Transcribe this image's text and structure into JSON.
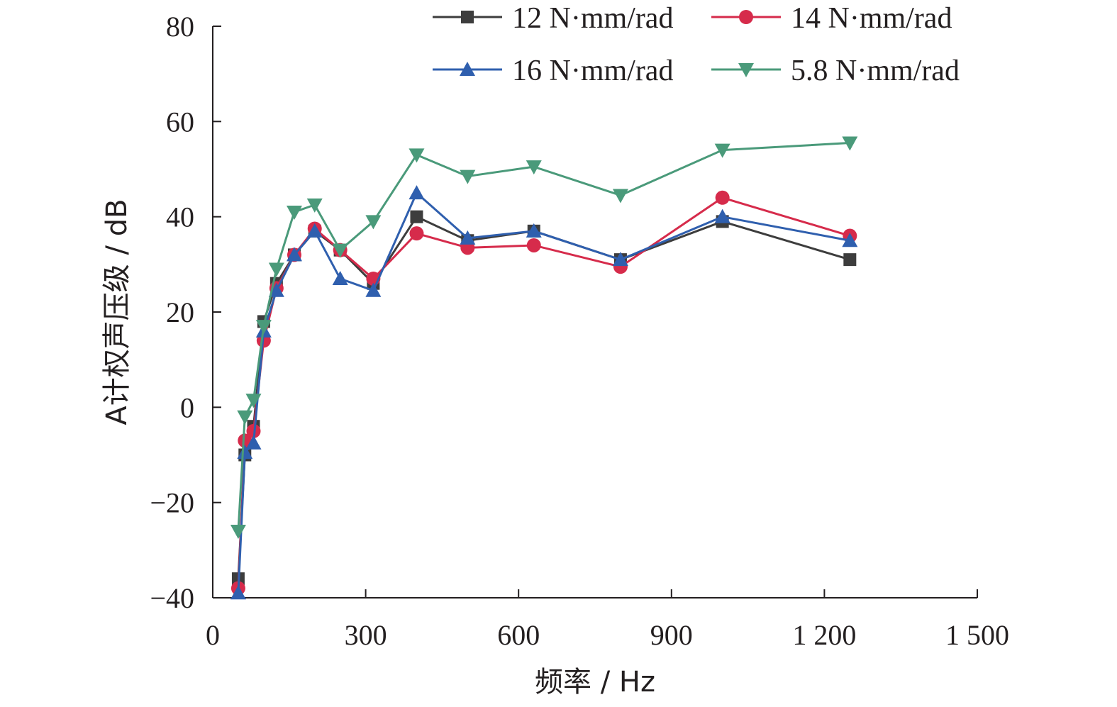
{
  "chart_data": {
    "type": "line",
    "title": "",
    "xlabel": "频率 / Hz",
    "ylabel": "A计权声压级 / dB",
    "xlim": [
      0,
      1500
    ],
    "ylim": [
      -40,
      80
    ],
    "xticks": [
      0,
      300,
      600,
      900,
      1200,
      1500
    ],
    "xtick_labels": [
      "0",
      "300",
      "600",
      "900",
      "1 200",
      "1 500"
    ],
    "yticks": [
      -40,
      -20,
      0,
      20,
      40,
      60,
      80
    ],
    "ytick_labels": [
      "−40",
      "−20",
      "0",
      "20",
      "40",
      "60",
      "80"
    ],
    "grid": false,
    "legend_position": "top-right",
    "x": [
      50,
      63,
      80,
      100,
      125,
      160,
      200,
      250,
      315,
      400,
      500,
      630,
      800,
      1000,
      1250
    ],
    "series": [
      {
        "name": "12 N·mm/rad",
        "color": "#3d3d3d",
        "marker": "square",
        "values": [
          -36,
          -10,
          -4,
          18,
          26,
          32,
          37,
          33,
          26,
          40,
          35,
          37,
          31,
          39,
          31
        ]
      },
      {
        "name": "14 N·mm/rad",
        "color": "#d62b4b",
        "marker": "circle",
        "values": [
          -38,
          -7,
          -5,
          14,
          25,
          32,
          37.5,
          33,
          27,
          36.5,
          33.5,
          34,
          29.5,
          44,
          36
        ]
      },
      {
        "name": "16 N·mm/rad",
        "color": "#2f5fae",
        "marker": "triangle-up",
        "values": [
          -39,
          -9.5,
          -7.5,
          16,
          24.5,
          32,
          37,
          27,
          24.5,
          45,
          35.5,
          37,
          31,
          40,
          35
        ]
      },
      {
        "name": "5.8 N·mm/rad",
        "color": "#4a9a7a",
        "marker": "triangle-down",
        "values": [
          -26,
          -2,
          1.5,
          17,
          29,
          41,
          42.5,
          33,
          39,
          53,
          48.5,
          50.5,
          44.5,
          54,
          55.5
        ]
      }
    ]
  }
}
